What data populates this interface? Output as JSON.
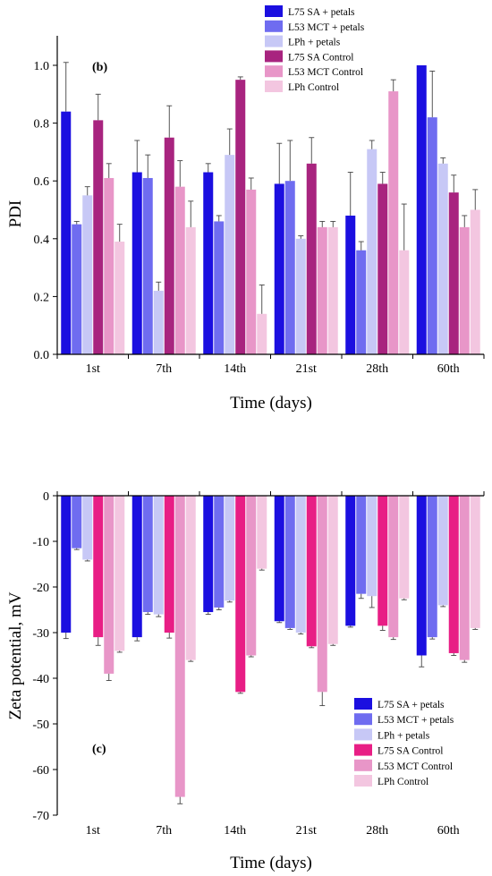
{
  "colors": [
    "#1b0fe0",
    "#6f6cf0",
    "#c7c8f6",
    "#a8247f",
    "#e81e85",
    "#eea3d2"
  ],
  "chart_data": [
    {
      "type": "bar",
      "panel_label": "(b)",
      "xlabel": "Time (days)",
      "ylabel": "PDI",
      "ylim": [
        0,
        1.1
      ],
      "yticks": [
        "0.0",
        "0.2",
        "0.4",
        "0.6",
        "0.8",
        "1.0"
      ],
      "ytick_values": [
        0,
        0.2,
        0.4,
        0.6,
        0.8,
        1.0
      ],
      "categories": [
        "1st",
        "7th",
        "14th",
        "21st",
        "28th",
        "60th"
      ],
      "legend_position": "top-right",
      "series": [
        {
          "name": "L75 SA + petals",
          "color": "#1b0fe0",
          "values": [
            0.84,
            0.63,
            0.63,
            0.59,
            0.48,
            1.0
          ],
          "errors": [
            0.17,
            0.11,
            0.03,
            0.14,
            0.15,
            0.0
          ]
        },
        {
          "name": "L53 MCT + petals",
          "color": "#6f6cf0",
          "values": [
            0.45,
            0.61,
            0.46,
            0.6,
            0.36,
            0.82
          ],
          "errors": [
            0.01,
            0.08,
            0.02,
            0.14,
            0.03,
            0.16
          ]
        },
        {
          "name": "LPh + petals",
          "color": "#c7c8f6",
          "values": [
            0.55,
            0.22,
            0.69,
            0.4,
            0.71,
            0.66
          ],
          "errors": [
            0.03,
            0.03,
            0.09,
            0.01,
            0.03,
            0.02
          ]
        },
        {
          "name": "L75 SA Control",
          "color": "#a8247f",
          "values": [
            0.81,
            0.75,
            0.95,
            0.66,
            0.59,
            0.56
          ],
          "errors": [
            0.09,
            0.11,
            0.01,
            0.09,
            0.04,
            0.06
          ]
        },
        {
          "name": "L53 MCT Control",
          "color": "#e896c8",
          "values": [
            0.61,
            0.58,
            0.57,
            0.44,
            0.91,
            0.44
          ],
          "errors": [
            0.05,
            0.09,
            0.04,
            0.02,
            0.04,
            0.04
          ]
        },
        {
          "name": "LPh Control",
          "color": "#f3c6e0",
          "values": [
            0.39,
            0.44,
            0.14,
            0.44,
            0.36,
            0.5
          ],
          "errors": [
            0.06,
            0.09,
            0.1,
            0.02,
            0.16,
            0.07
          ]
        }
      ]
    },
    {
      "type": "bar",
      "panel_label": "(c)",
      "xlabel": "Time (days)",
      "ylabel": "Zeta potential, mV",
      "ylim": [
        -70,
        0
      ],
      "yticks": [
        "0",
        "-10",
        "-20",
        "-30",
        "-40",
        "-50",
        "-60",
        "-70"
      ],
      "ytick_values": [
        0,
        -10,
        -20,
        -30,
        -40,
        -50,
        -60,
        -70
      ],
      "categories": [
        "1st",
        "7th",
        "14th",
        "21st",
        "28th",
        "60th"
      ],
      "legend_position": "bottom-right",
      "series": [
        {
          "name": "L75 SA + petals",
          "color": "#1b0fe0",
          "values": [
            -30.0,
            -31.0,
            -25.5,
            -27.5,
            -28.5,
            -35.0
          ],
          "errors": [
            1.3,
            0.8,
            0.5,
            0.3,
            0.3,
            2.5
          ]
        },
        {
          "name": "L53 MCT + petals",
          "color": "#6f6cf0",
          "values": [
            -11.5,
            -25.5,
            -24.5,
            -29.0,
            -21.5,
            -31.0
          ],
          "errors": [
            0.3,
            0.5,
            0.5,
            0.3,
            1.0,
            0.4
          ]
        },
        {
          "name": "LPh + petals",
          "color": "#c7c8f6",
          "values": [
            -14.0,
            -26.0,
            -23.0,
            -30.0,
            -22.0,
            -24.0
          ],
          "errors": [
            0.3,
            0.5,
            0.3,
            0.3,
            2.5,
            0.3
          ]
        },
        {
          "name": "L75 SA Control",
          "color": "#e81e85",
          "values": [
            -31.0,
            -30.0,
            -43.0,
            -33.0,
            -28.5,
            -34.5
          ],
          "errors": [
            1.8,
            1.2,
            0.3,
            0.3,
            1.0,
            0.5
          ]
        },
        {
          "name": "L53 MCT Control",
          "color": "#e896c8",
          "values": [
            -39.0,
            -66.0,
            -35.0,
            -43.0,
            -31.0,
            -36.0
          ],
          "errors": [
            1.5,
            1.5,
            0.3,
            3.0,
            0.5,
            0.5
          ]
        },
        {
          "name": "LPh Control",
          "color": "#f3c6e0",
          "values": [
            -34.0,
            -36.0,
            -16.0,
            -32.5,
            -22.5,
            -29.0
          ],
          "errors": [
            0.3,
            0.3,
            0.3,
            0.3,
            0.3,
            0.3
          ]
        }
      ]
    }
  ]
}
